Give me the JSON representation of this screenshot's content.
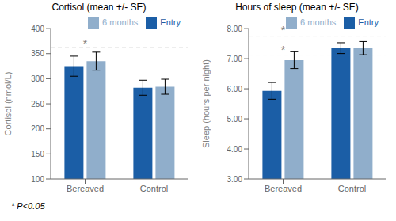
{
  "chart_data": [
    {
      "type": "bar",
      "title": "Cortisol (mean +/- SE)",
      "y_label": "Cortisol (nmol/L)",
      "categories": [
        "Bereaved",
        "Control"
      ],
      "series": [
        {
          "name": "Entry",
          "color": "#1b5ea6",
          "values": [
            325,
            282
          ],
          "errors": [
            20,
            15
          ]
        },
        {
          "name": "6 months",
          "color": "#90aecb",
          "values": [
            335,
            284
          ],
          "errors": [
            18,
            15
          ]
        }
      ],
      "ylim": [
        100,
        400
      ],
      "yticks": [
        100,
        150,
        200,
        250,
        300,
        350,
        400
      ],
      "reference_lines": [
        362
      ],
      "annotations": [
        {
          "text": "*",
          "x": "Bereaved",
          "y": 355
        }
      ],
      "legend": "upper right",
      "grid": false
    },
    {
      "type": "bar",
      "title": "Hours of sleep (mean +/- SE)",
      "y_label": "Sleep (hours per night)",
      "categories": [
        "Bereaved",
        "Control"
      ],
      "series": [
        {
          "name": "Entry",
          "color": "#1b5ea6",
          "values": [
            5.93,
            7.35
          ],
          "errors": [
            0.28,
            0.18
          ]
        },
        {
          "name": "6 months",
          "color": "#90aecb",
          "values": [
            6.95,
            7.35
          ],
          "errors": [
            0.28,
            0.22
          ]
        }
      ],
      "ylim": [
        3.0,
        8.0
      ],
      "yticks": [
        {
          "value": 3.0,
          "label": "3.00"
        },
        {
          "value": 4.0,
          "label": "4.00"
        },
        {
          "value": 5.0,
          "label": "5.00"
        },
        {
          "value": 6.0,
          "label": "6.00"
        },
        {
          "value": 7.0,
          "label": "7.00"
        },
        {
          "value": 8.0,
          "label": "8.00"
        }
      ],
      "reference_lines": [
        7.75,
        7.12
      ],
      "annotations": [
        {
          "text": "*",
          "x": "Bereaved",
          "y": 7.68
        },
        {
          "text": "*",
          "x": "Bereaved",
          "y": 7.04
        }
      ],
      "legend": "upper right",
      "grid": false
    }
  ],
  "footnote": "* P<0.05"
}
